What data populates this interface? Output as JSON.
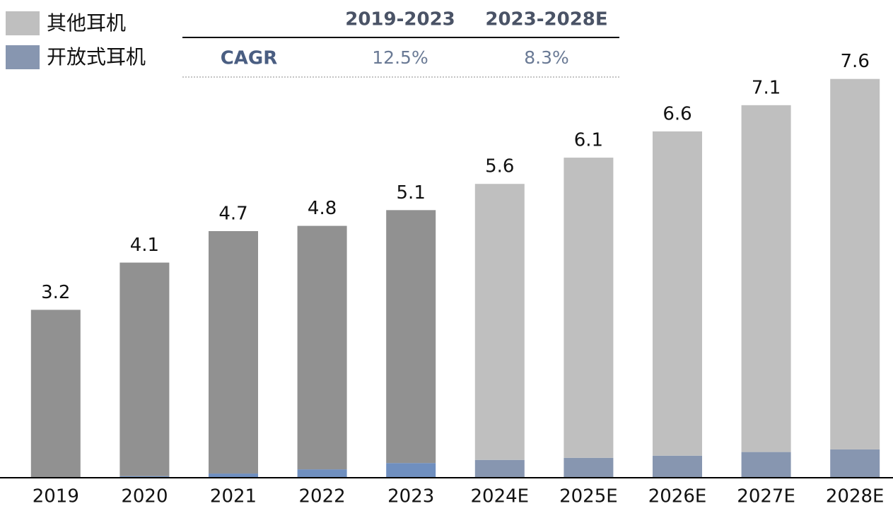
{
  "chart_data": {
    "type": "stacked_bar",
    "categories": [
      "2019",
      "2020",
      "2021",
      "2022",
      "2023",
      "2024E",
      "2025E",
      "2026E",
      "2027E",
      "2028E"
    ],
    "series": [
      {
        "name": "开放式耳机",
        "color": "#8796b0",
        "colors": [
          "#6f8fbf",
          "#6f8fbf",
          "#6f8fbf",
          "#6f8fbf",
          "#6f8fbf",
          "#8796b0",
          "#8796b0",
          "#8796b0",
          "#8796b0",
          "#8796b0"
        ],
        "values": [
          0,
          0.03,
          0.08,
          0.16,
          0.28,
          0.34,
          0.38,
          0.42,
          0.49,
          0.54
        ]
      },
      {
        "name": "其他耳机",
        "color": "#bfbfbf",
        "colors": [
          "#919191",
          "#919191",
          "#919191",
          "#919191",
          "#919191",
          "#bfbfbf",
          "#bfbfbf",
          "#bfbfbf",
          "#bfbfbf",
          "#bfbfbf"
        ],
        "values": [
          3.2,
          4.07,
          4.62,
          4.64,
          4.82,
          5.26,
          5.72,
          6.18,
          6.61,
          7.06
        ]
      }
    ],
    "totals": [
      3.2,
      4.1,
      4.7,
      4.8,
      5.1,
      5.6,
      6.1,
      6.6,
      7.1,
      7.6
    ],
    "ylim": [
      0,
      8
    ],
    "cagr_table": {
      "columns": [
        "2019-2023",
        "2023-2028E"
      ],
      "row_label": "CAGR",
      "values": [
        "12.5%",
        "8.3%"
      ]
    }
  }
}
